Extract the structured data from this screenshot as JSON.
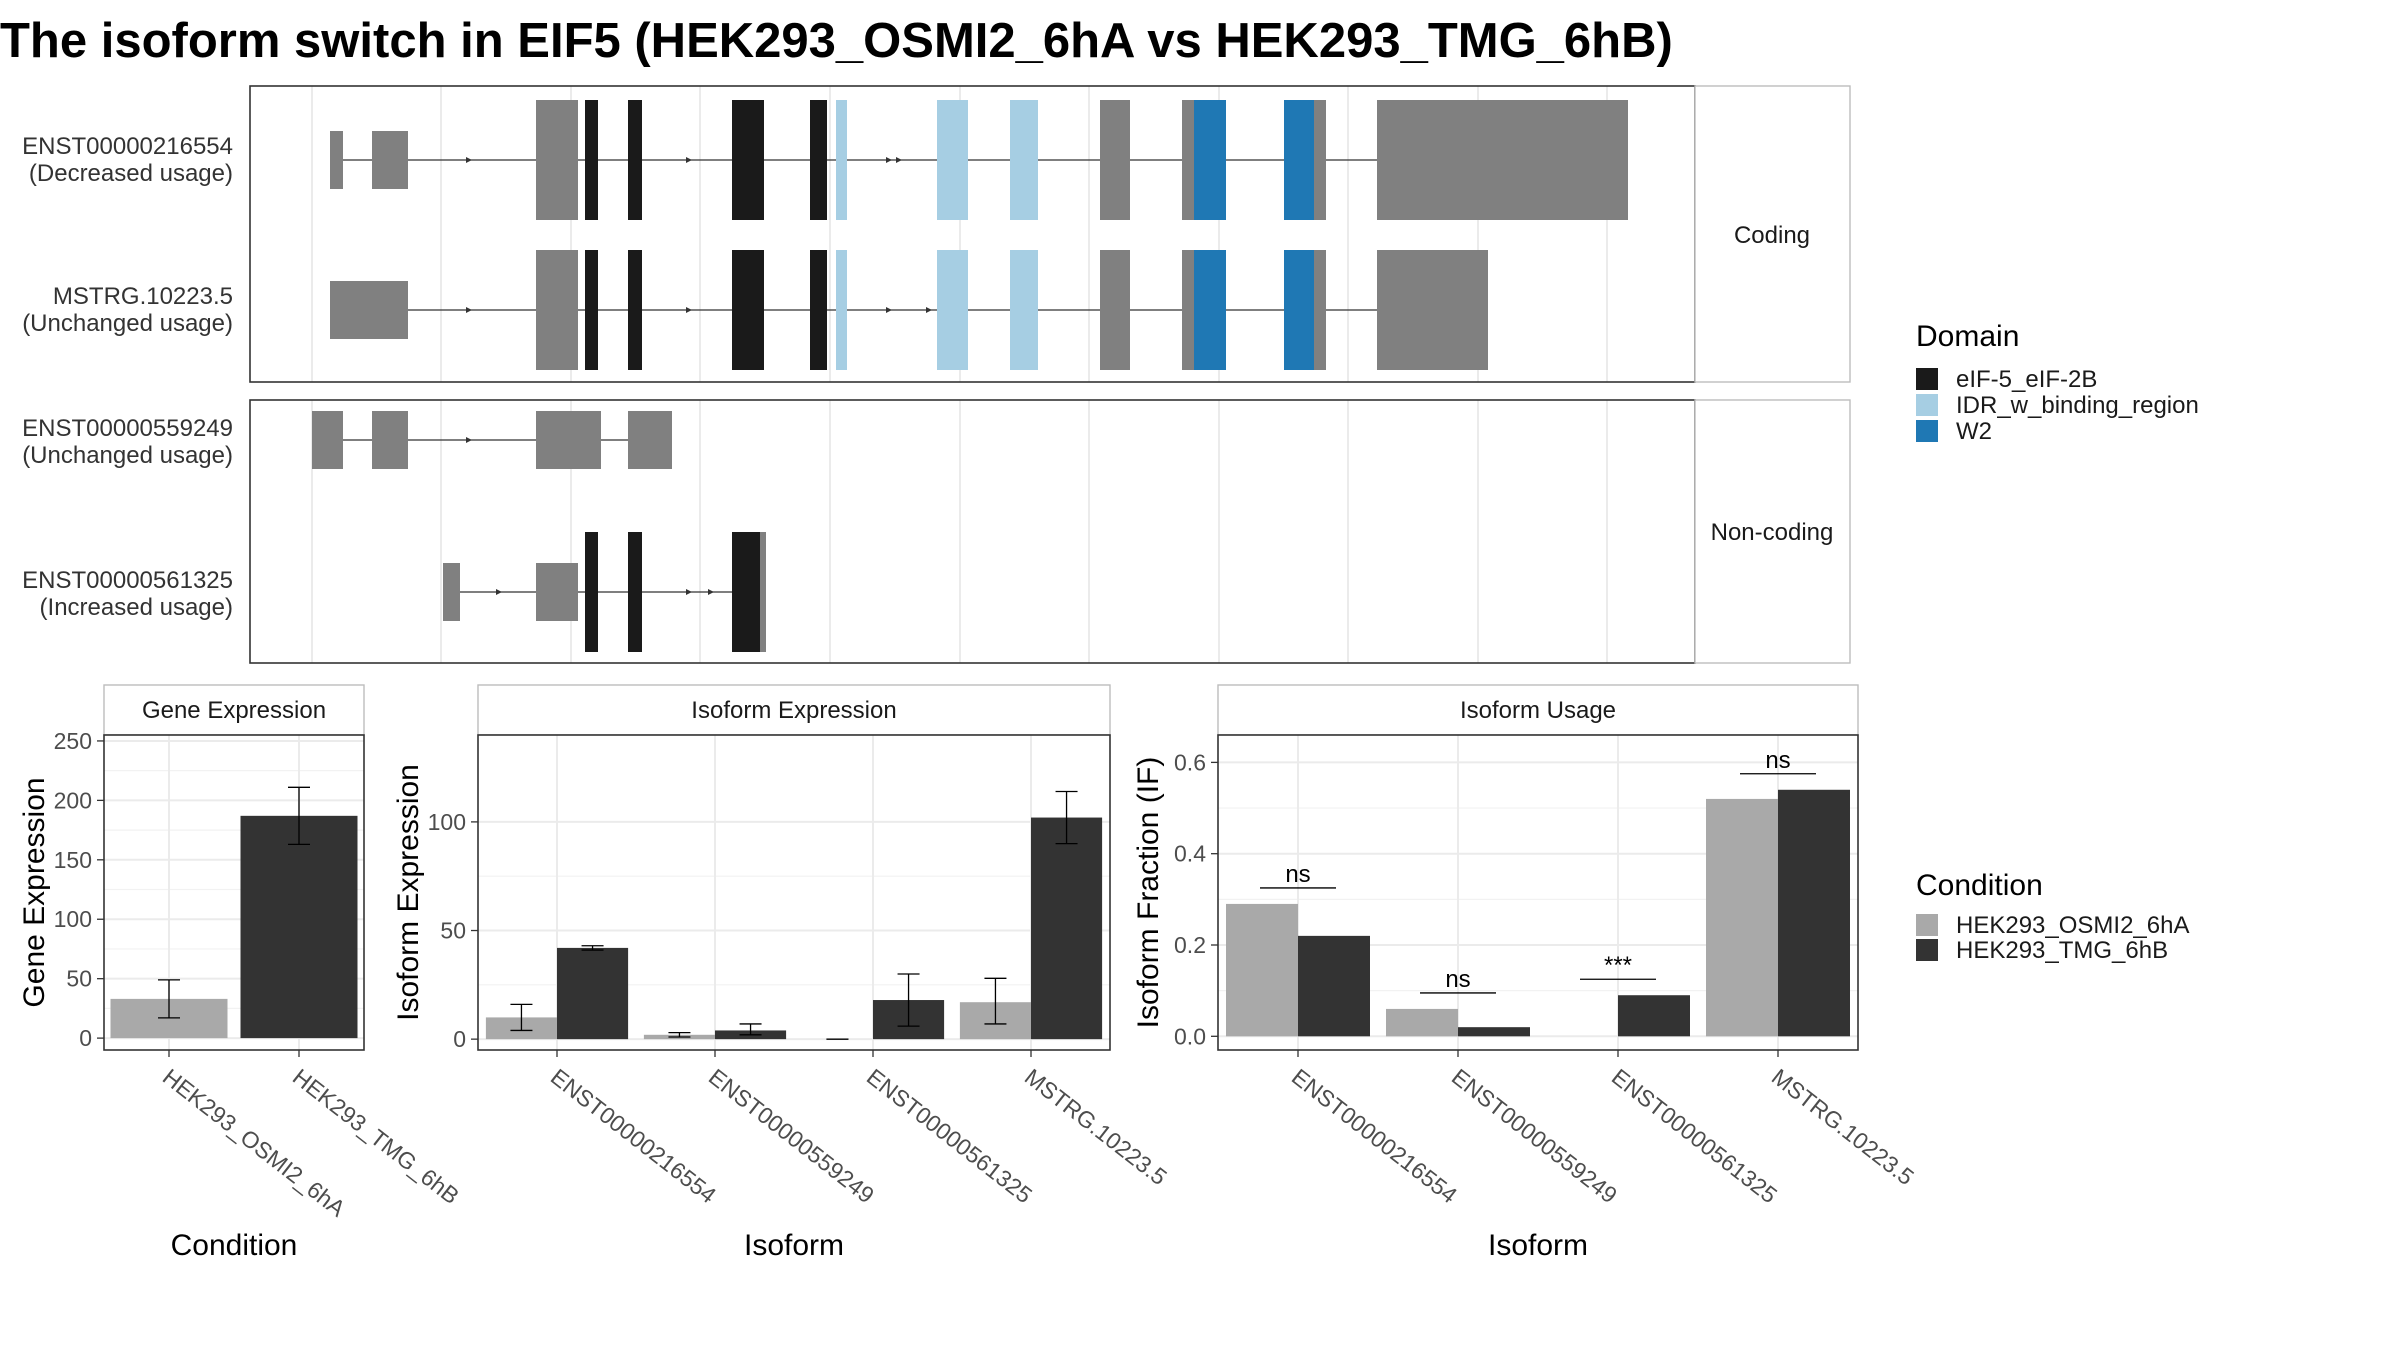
{
  "title": "The isoform switch in EIF5 (HEK293_OSMI2_6hA vs HEK293_TMG_6hB)",
  "colors": {
    "exon": "#808080",
    "eIF5": "#1a1a1a",
    "IDR": "#a6cee3",
    "W2": "#1f78b4",
    "condA": "#a9a9a9",
    "condB": "#333333"
  },
  "structure": {
    "strips": [
      "Coding",
      "Non-coding"
    ],
    "transcripts": [
      {
        "id": "ENST00000216554",
        "usage": "(Decreased usage)"
      },
      {
        "id": "MSTRG.10223.5",
        "usage": "(Unchanged usage)"
      },
      {
        "id": "ENST00000559249",
        "usage": "(Unchanged usage)"
      },
      {
        "id": "ENST00000561325",
        "usage": "(Increased usage)"
      }
    ]
  },
  "legend": {
    "domain_title": "Domain",
    "domains": [
      "eIF-5_eIF-2B",
      "IDR_w_binding_region",
      "W2"
    ],
    "condition_title": "Condition",
    "conditions": [
      "HEK293_OSMI2_6hA",
      "HEK293_TMG_6hB"
    ]
  },
  "chart_data": [
    {
      "type": "bar",
      "title": "Gene Expression",
      "xlabel": "Condition",
      "ylabel": "Gene Expression",
      "categories": [
        "HEK293_OSMI2_6hA",
        "HEK293_TMG_6hB"
      ],
      "values": [
        33,
        187
      ],
      "error_low": [
        17,
        163
      ],
      "error_high": [
        49,
        211
      ],
      "ylim": [
        -10,
        255
      ],
      "yticks": [
        0,
        50,
        100,
        150,
        200,
        250
      ]
    },
    {
      "type": "bar",
      "title": "Isoform Expression",
      "xlabel": "Isoform",
      "ylabel": "Isoform Expression",
      "categories": [
        "ENST00000216554",
        "ENST00000559249",
        "ENST00000561325",
        "MSTRG.10223.5"
      ],
      "series": [
        {
          "name": "HEK293_OSMI2_6hA",
          "values": [
            10,
            2,
            0,
            17
          ],
          "error_low": [
            4,
            1,
            0,
            7
          ],
          "error_high": [
            16,
            3,
            0,
            28
          ]
        },
        {
          "name": "HEK293_TMG_6hB",
          "values": [
            42,
            4,
            18,
            102
          ],
          "error_low": [
            41,
            2,
            6,
            90
          ],
          "error_high": [
            43,
            7,
            30,
            114
          ]
        }
      ],
      "ylim": [
        -5,
        140
      ],
      "yticks": [
        0,
        50,
        100
      ]
    },
    {
      "type": "bar",
      "title": "Isoform Usage",
      "xlabel": "Isoform",
      "ylabel": "Isoform Fraction (IF)",
      "categories": [
        "ENST00000216554",
        "ENST00000559249",
        "ENST00000561325",
        "MSTRG.10223.5"
      ],
      "series": [
        {
          "name": "HEK293_OSMI2_6hA",
          "values": [
            0.29,
            0.06,
            0.0,
            0.52
          ]
        },
        {
          "name": "HEK293_TMG_6hB",
          "values": [
            0.22,
            0.02,
            0.09,
            0.54
          ]
        }
      ],
      "significance": [
        "ns",
        "ns",
        "***",
        "ns"
      ],
      "ylim": [
        -0.03,
        0.66
      ],
      "yticks": [
        "0.0",
        "0.2",
        "0.4",
        "0.6"
      ]
    }
  ]
}
